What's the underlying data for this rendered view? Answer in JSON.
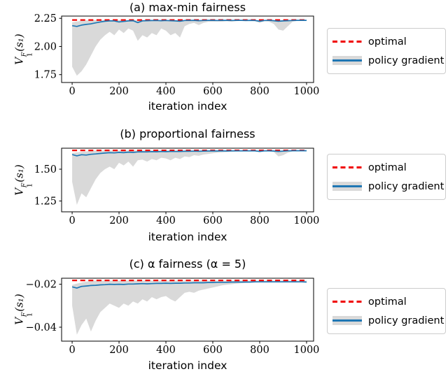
{
  "colors": {
    "optimal": "#f00000",
    "policy": "#1f77b4",
    "band": "#d9d9d9",
    "axis": "#000000"
  },
  "chart_data": [
    {
      "id": "a",
      "type": "line",
      "title": "(a) max-min fairness",
      "xlabel": "iteration index",
      "ylabel": {
        "base": "V",
        "sup": "F",
        "sub": "1",
        "arg": "(s₁)"
      },
      "xlim": [
        -45,
        1030
      ],
      "ylim": [
        1.68,
        2.27
      ],
      "xticks": {
        "values": [
          0,
          200,
          400,
          600,
          800,
          1000
        ],
        "labels": [
          "0",
          "200",
          "400",
          "600",
          "800",
          "1000"
        ]
      },
      "yticks": {
        "values": [
          2.25,
          2.0,
          1.75
        ],
        "labels": [
          "2.25",
          "2.00",
          "1.75"
        ]
      },
      "optimal": 2.235,
      "legend": [
        {
          "label": "optimal"
        },
        {
          "label": "policy gradient"
        }
      ],
      "series": {
        "x": [
          0,
          20,
          40,
          60,
          80,
          100,
          120,
          140,
          160,
          180,
          200,
          220,
          240,
          260,
          280,
          300,
          320,
          340,
          360,
          380,
          400,
          420,
          440,
          460,
          480,
          500,
          520,
          540,
          560,
          580,
          600,
          620,
          640,
          660,
          680,
          700,
          720,
          740,
          760,
          780,
          800,
          820,
          840,
          860,
          880,
          900,
          920,
          940,
          960,
          980,
          1000
        ],
        "mean": [
          2.185,
          2.178,
          2.19,
          2.196,
          2.201,
          2.21,
          2.218,
          2.224,
          2.227,
          2.227,
          2.218,
          2.222,
          2.227,
          2.229,
          2.212,
          2.228,
          2.229,
          2.23,
          2.231,
          2.229,
          2.231,
          2.229,
          2.227,
          2.224,
          2.231,
          2.231,
          2.232,
          2.229,
          2.231,
          2.232,
          2.232,
          2.231,
          2.232,
          2.232,
          2.231,
          2.232,
          2.232,
          2.231,
          2.232,
          2.231,
          2.224,
          2.231,
          2.232,
          2.229,
          2.224,
          2.227,
          2.229,
          2.231,
          2.232,
          2.232,
          2.232
        ],
        "upper": [
          2.215,
          2.222,
          2.228,
          2.232,
          2.235,
          2.235,
          2.235,
          2.235,
          2.235,
          2.235,
          2.235,
          2.235,
          2.235,
          2.235,
          2.235,
          2.235,
          2.235,
          2.235,
          2.235,
          2.235,
          2.235,
          2.235,
          2.235,
          2.235,
          2.235,
          2.235,
          2.235,
          2.235,
          2.235,
          2.235,
          2.235,
          2.235,
          2.235,
          2.235,
          2.235,
          2.235,
          2.235,
          2.235,
          2.235,
          2.235,
          2.235,
          2.235,
          2.235,
          2.235,
          2.235,
          2.235,
          2.235,
          2.235,
          2.235,
          2.235,
          2.235
        ],
        "lower": [
          1.82,
          1.74,
          1.78,
          1.84,
          1.92,
          2.0,
          2.06,
          2.1,
          2.13,
          2.1,
          2.15,
          2.12,
          2.16,
          2.14,
          2.05,
          2.1,
          2.08,
          2.12,
          2.1,
          2.16,
          2.14,
          2.1,
          2.12,
          2.08,
          2.18,
          2.2,
          2.21,
          2.19,
          2.21,
          2.22,
          2.22,
          2.222,
          2.22,
          2.224,
          2.22,
          2.225,
          2.228,
          2.224,
          2.228,
          2.225,
          2.21,
          2.224,
          2.22,
          2.2,
          2.15,
          2.14,
          2.18,
          2.22,
          2.228,
          2.23,
          2.23
        ]
      }
    },
    {
      "id": "b",
      "type": "line",
      "title": "(b) proportional fairness",
      "xlabel": "iteration index",
      "ylabel": {
        "base": "V",
        "sup": "F",
        "sub": "1",
        "arg": "(s₁)"
      },
      "xlim": [
        -45,
        1030
      ],
      "ylim": [
        1.165,
        1.665
      ],
      "xticks": {
        "values": [
          0,
          200,
          400,
          600,
          800,
          1000
        ],
        "labels": [
          "0",
          "200",
          "400",
          "600",
          "800",
          "1000"
        ]
      },
      "yticks": {
        "values": [
          1.5,
          1.25
        ],
        "labels": [
          "1.50",
          "1.25"
        ]
      },
      "optimal": 1.648,
      "legend": [
        {
          "label": "optimal"
        },
        {
          "label": "policy gradient"
        }
      ],
      "series": {
        "x": [
          0,
          20,
          40,
          60,
          80,
          100,
          120,
          140,
          160,
          180,
          200,
          220,
          240,
          260,
          280,
          300,
          320,
          340,
          360,
          380,
          400,
          420,
          440,
          460,
          480,
          500,
          520,
          540,
          560,
          580,
          600,
          620,
          640,
          660,
          680,
          700,
          720,
          740,
          760,
          780,
          800,
          820,
          840,
          860,
          880,
          900,
          920,
          940,
          960,
          980,
          1000
        ],
        "mean": [
          1.615,
          1.605,
          1.614,
          1.611,
          1.617,
          1.62,
          1.624,
          1.627,
          1.63,
          1.628,
          1.632,
          1.63,
          1.634,
          1.632,
          1.636,
          1.637,
          1.636,
          1.638,
          1.637,
          1.639,
          1.638,
          1.64,
          1.639,
          1.64,
          1.641,
          1.641,
          1.642,
          1.641,
          1.642,
          1.643,
          1.643,
          1.643,
          1.644,
          1.643,
          1.644,
          1.644,
          1.644,
          1.644,
          1.644,
          1.644,
          1.64,
          1.644,
          1.644,
          1.643,
          1.64,
          1.642,
          1.644,
          1.645,
          1.645,
          1.645,
          1.645
        ],
        "upper": [
          1.628,
          1.632,
          1.636,
          1.64,
          1.644,
          1.647,
          1.647,
          1.647,
          1.647,
          1.647,
          1.647,
          1.647,
          1.647,
          1.647,
          1.647,
          1.647,
          1.647,
          1.647,
          1.647,
          1.647,
          1.647,
          1.647,
          1.647,
          1.647,
          1.647,
          1.647,
          1.647,
          1.647,
          1.647,
          1.647,
          1.647,
          1.647,
          1.647,
          1.647,
          1.647,
          1.647,
          1.647,
          1.647,
          1.647,
          1.647,
          1.647,
          1.647,
          1.647,
          1.647,
          1.647,
          1.647,
          1.647,
          1.647,
          1.647,
          1.647,
          1.647
        ],
        "lower": [
          1.4,
          1.22,
          1.31,
          1.28,
          1.35,
          1.42,
          1.47,
          1.5,
          1.52,
          1.5,
          1.55,
          1.53,
          1.56,
          1.52,
          1.57,
          1.575,
          1.56,
          1.58,
          1.57,
          1.59,
          1.585,
          1.57,
          1.59,
          1.58,
          1.6,
          1.595,
          1.61,
          1.605,
          1.615,
          1.62,
          1.625,
          1.63,
          1.632,
          1.635,
          1.636,
          1.638,
          1.64,
          1.64,
          1.64,
          1.64,
          1.638,
          1.64,
          1.64,
          1.635,
          1.6,
          1.61,
          1.63,
          1.64,
          1.642,
          1.643,
          1.643
        ]
      }
    },
    {
      "id": "c",
      "type": "line",
      "title": "(c) α fairness (α = 5)",
      "xlabel": "iteration index",
      "ylabel": {
        "base": "V",
        "sup": "F",
        "sub": "1",
        "arg": "(s₁)"
      },
      "xlim": [
        -45,
        1030
      ],
      "ylim": [
        -0.0465,
        -0.0172
      ],
      "xticks": {
        "values": [
          0,
          200,
          400,
          600,
          800,
          1000
        ],
        "labels": [
          "0",
          "200",
          "400",
          "600",
          "800",
          "1000"
        ]
      },
      "yticks": {
        "values": [
          -0.02,
          -0.04
        ],
        "labels": [
          "−0.02",
          "−0.04"
        ]
      },
      "optimal": -0.0182,
      "legend": [
        {
          "label": "optimal"
        },
        {
          "label": "policy gradient"
        }
      ],
      "series": {
        "x": [
          0,
          20,
          40,
          60,
          80,
          100,
          120,
          140,
          160,
          180,
          200,
          220,
          240,
          260,
          280,
          300,
          320,
          340,
          360,
          380,
          400,
          420,
          440,
          460,
          480,
          500,
          520,
          540,
          560,
          580,
          600,
          620,
          640,
          660,
          680,
          700,
          720,
          740,
          760,
          780,
          800,
          820,
          840,
          860,
          880,
          900,
          920,
          940,
          960,
          980,
          1000
        ],
        "mean": [
          -0.0212,
          -0.0218,
          -0.021,
          -0.0208,
          -0.0206,
          -0.0205,
          -0.0203,
          -0.0202,
          -0.02,
          -0.0201,
          -0.02,
          -0.0201,
          -0.0199,
          -0.0199,
          -0.0198,
          -0.0197,
          -0.0198,
          -0.0197,
          -0.0196,
          -0.0196,
          -0.0195,
          -0.0196,
          -0.0195,
          -0.0195,
          -0.0194,
          -0.0194,
          -0.0193,
          -0.0193,
          -0.0193,
          -0.0192,
          -0.0192,
          -0.0191,
          -0.0191,
          -0.0191,
          -0.019,
          -0.019,
          -0.019,
          -0.019,
          -0.019,
          -0.0189,
          -0.0189,
          -0.0189,
          -0.0189,
          -0.0189,
          -0.0189,
          -0.0189,
          -0.0189,
          -0.0189,
          -0.0189,
          -0.0189,
          -0.019
        ],
        "upper": [
          -0.0203,
          -0.0197,
          -0.0192,
          -0.0188,
          -0.0185,
          -0.0183,
          -0.0183,
          -0.0183,
          -0.0183,
          -0.0183,
          -0.0183,
          -0.0183,
          -0.0183,
          -0.0183,
          -0.0183,
          -0.0183,
          -0.0183,
          -0.0183,
          -0.0183,
          -0.0183,
          -0.0183,
          -0.0183,
          -0.0183,
          -0.0183,
          -0.0183,
          -0.0183,
          -0.0183,
          -0.0183,
          -0.0183,
          -0.0183,
          -0.0183,
          -0.0183,
          -0.0183,
          -0.0183,
          -0.0183,
          -0.0183,
          -0.0183,
          -0.0183,
          -0.0183,
          -0.0183,
          -0.0183,
          -0.0183,
          -0.0183,
          -0.0183,
          -0.0183,
          -0.0183,
          -0.0183,
          -0.0183,
          -0.0183,
          -0.0183,
          -0.0183
        ],
        "lower": [
          -0.03,
          -0.0435,
          -0.039,
          -0.036,
          -0.042,
          -0.037,
          -0.033,
          -0.031,
          -0.029,
          -0.03,
          -0.031,
          -0.029,
          -0.03,
          -0.028,
          -0.029,
          -0.027,
          -0.028,
          -0.026,
          -0.027,
          -0.026,
          -0.0255,
          -0.027,
          -0.028,
          -0.026,
          -0.024,
          -0.0235,
          -0.024,
          -0.023,
          -0.0225,
          -0.022,
          -0.0215,
          -0.021,
          -0.0205,
          -0.0202,
          -0.02,
          -0.0197,
          -0.0195,
          -0.0193,
          -0.0192,
          -0.0191,
          -0.0191,
          -0.019,
          -0.019,
          -0.019,
          -0.019,
          -0.019,
          -0.019,
          -0.019,
          -0.019,
          -0.019,
          -0.0191
        ]
      }
    }
  ]
}
